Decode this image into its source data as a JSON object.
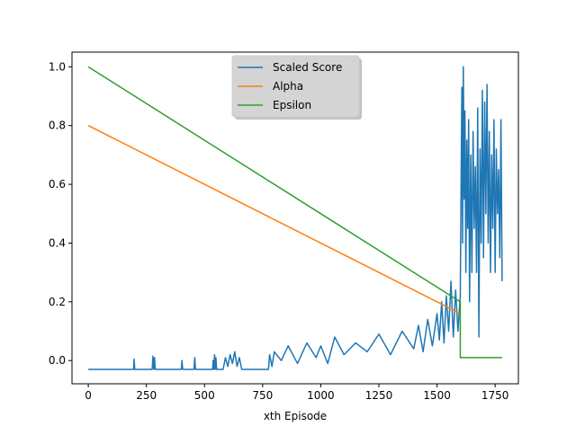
{
  "chart_data": {
    "type": "line",
    "title": "",
    "xlabel": "xth Episode",
    "ylabel": "",
    "xlim": [
      -70,
      1850
    ],
    "ylim": [
      -0.079,
      1.05
    ],
    "xticks": [
      0,
      250,
      500,
      750,
      1000,
      1250,
      1500,
      1750
    ],
    "yticks": [
      0.0,
      0.2,
      0.4,
      0.6,
      0.8,
      1.0
    ],
    "xtick_labels": [
      "0",
      "250",
      "500",
      "750",
      "1000",
      "1250",
      "1500",
      "1750"
    ],
    "ytick_labels": [
      "0.0",
      "0.2",
      "0.4",
      "0.6",
      "0.8",
      "1.0"
    ],
    "legend_position": "top-center",
    "grid": false,
    "series": [
      {
        "name": "Scaled Score",
        "color": "#1f77b4",
        "x": [
          0,
          195,
          197,
          200,
          275,
          278,
          282,
          285,
          288,
          400,
          403,
          406,
          455,
          458,
          461,
          535,
          537,
          540,
          543,
          546,
          549,
          552,
          580,
          590,
          600,
          610,
          620,
          630,
          640,
          650,
          660,
          670,
          680,
          690,
          700,
          775,
          780,
          790,
          800,
          830,
          860,
          900,
          940,
          980,
          1000,
          1030,
          1060,
          1100,
          1150,
          1200,
          1250,
          1300,
          1350,
          1400,
          1420,
          1440,
          1460,
          1480,
          1500,
          1510,
          1520,
          1530,
          1540,
          1550,
          1560,
          1570,
          1580,
          1590,
          1600,
          1603,
          1607,
          1610,
          1613,
          1617,
          1620,
          1624,
          1628,
          1632,
          1636,
          1640,
          1645,
          1650,
          1655,
          1660,
          1665,
          1670,
          1675,
          1680,
          1685,
          1690,
          1695,
          1700,
          1705,
          1710,
          1715,
          1720,
          1725,
          1730,
          1735,
          1740,
          1745,
          1750,
          1755,
          1760,
          1765,
          1770,
          1775,
          1780
        ],
        "y": [
          -0.03,
          -0.03,
          0.005,
          -0.03,
          -0.03,
          0.015,
          -0.03,
          0.01,
          -0.03,
          -0.03,
          0.0,
          -0.03,
          -0.03,
          0.01,
          -0.03,
          -0.03,
          0.0,
          -0.03,
          0.02,
          -0.03,
          0.01,
          -0.03,
          -0.03,
          0.01,
          -0.02,
          0.02,
          -0.01,
          0.03,
          -0.02,
          0.01,
          -0.03,
          -0.03,
          -0.03,
          -0.03,
          -0.03,
          -0.03,
          0.02,
          -0.02,
          0.03,
          0.0,
          0.05,
          -0.01,
          0.06,
          0.01,
          0.05,
          -0.01,
          0.08,
          0.02,
          0.06,
          0.03,
          0.09,
          0.02,
          0.1,
          0.04,
          0.12,
          0.03,
          0.14,
          0.05,
          0.16,
          0.07,
          0.2,
          0.06,
          0.22,
          0.1,
          0.27,
          0.08,
          0.24,
          0.1,
          0.22,
          0.55,
          0.93,
          0.4,
          1.0,
          0.55,
          0.85,
          0.3,
          0.75,
          0.45,
          0.82,
          0.2,
          0.7,
          0.3,
          0.78,
          0.45,
          0.66,
          0.3,
          0.86,
          0.08,
          0.72,
          0.4,
          0.92,
          0.35,
          0.88,
          0.5,
          0.94,
          0.4,
          0.78,
          0.3,
          0.7,
          0.45,
          0.82,
          0.3,
          0.72,
          0.5,
          0.65,
          0.35,
          0.82,
          0.27
        ]
      },
      {
        "name": "Alpha",
        "color": "#ff7f0e",
        "x": [
          0,
          1600
        ],
        "y": [
          0.8,
          0.16
        ]
      },
      {
        "name": "Epsilon",
        "color": "#2ca02c",
        "x": [
          0,
          1600,
          1600,
          1780
        ],
        "y": [
          1.0,
          0.2,
          0.01,
          0.01
        ]
      }
    ]
  }
}
